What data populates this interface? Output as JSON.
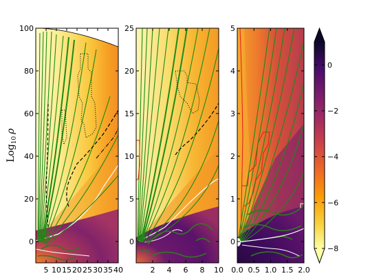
{
  "chart_data": {
    "type": "heatmap",
    "layout": "three panels sharing a colorbar",
    "ylabel": "Log",
    "ylabel_sub": "10",
    "ylabel_var": "ρ",
    "colormap": "inferno_r",
    "colorbar": {
      "min": -8,
      "max": 1,
      "ticks": [
        0,
        -2,
        -4,
        -6,
        -8
      ],
      "tick_labels": [
        "0",
        "−2",
        "−4",
        "−6",
        "−8"
      ],
      "extend": "both"
    },
    "panels": [
      {
        "name": "left",
        "xlim": [
          0,
          40
        ],
        "ylim": [
          -10,
          100
        ],
        "xticks": [
          5,
          10,
          15,
          20,
          25,
          30,
          35,
          40
        ],
        "xtick_labels": [
          "5",
          "10",
          "15",
          "20",
          "25",
          "30",
          "35",
          "40"
        ],
        "yticks": [
          0,
          20,
          40,
          60,
          80,
          100
        ],
        "ytick_labels": [
          "0",
          "20",
          "40",
          "60",
          "80",
          "100"
        ],
        "outer_radius": 100
      },
      {
        "name": "middle",
        "xlim": [
          0,
          10
        ],
        "ylim": [
          -2.5,
          25
        ],
        "xticks": [
          2,
          4,
          6,
          8,
          10
        ],
        "xtick_labels": [
          "2",
          "4",
          "6",
          "8",
          "10"
        ],
        "yticks": [
          0,
          5,
          10,
          15,
          20,
          25
        ],
        "ytick_labels": [
          "0",
          "5",
          "10",
          "15",
          "20",
          "25"
        ]
      },
      {
        "name": "right",
        "xlim": [
          0,
          2
        ],
        "ylim": [
          -0.5,
          5
        ],
        "xticks": [
          0.0,
          0.5,
          1.0,
          1.5,
          2.0
        ],
        "xtick_labels": [
          "0.0",
          "0.5",
          "1.0",
          "1.5",
          "2.0"
        ],
        "yticks": [
          0,
          1,
          2,
          3,
          4,
          5
        ],
        "ytick_labels": [
          "0",
          "1",
          "2",
          "3",
          "4",
          "5"
        ]
      }
    ],
    "overlays": [
      {
        "kind": "contour",
        "color": "#ffffff"
      },
      {
        "kind": "field-lines",
        "color": "#1e8a14"
      },
      {
        "kind": "contour",
        "color": "#000000",
        "style": "dashed"
      },
      {
        "kind": "contour",
        "color": "#000000",
        "style": "dotted"
      },
      {
        "kind": "contour",
        "color": "#e31a1c"
      }
    ]
  }
}
